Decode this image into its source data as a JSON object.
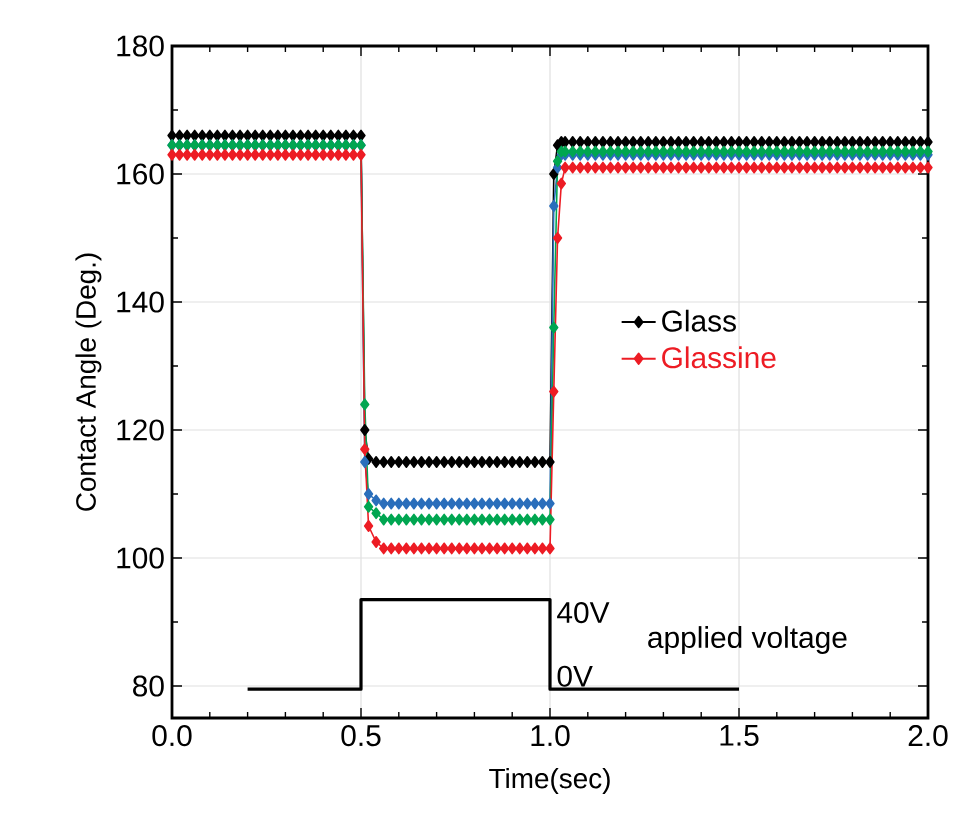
{
  "chart_data": {
    "type": "line",
    "xlabel": "Time(sec)",
    "ylabel": "Contact Angle (Deg.)",
    "xlim": [
      0,
      2
    ],
    "ylim": [
      75,
      180
    ],
    "xticks": [
      {
        "value": 0,
        "label": "0.0"
      },
      {
        "value": 0.5,
        "label": "0.5"
      },
      {
        "value": 1,
        "label": "1.0"
      },
      {
        "value": 1.5,
        "label": "1.5"
      },
      {
        "value": 2,
        "label": "2.0"
      }
    ],
    "yticks": [
      80,
      100,
      120,
      140,
      160,
      180
    ],
    "grid": true,
    "legend": "right",
    "marker": "diamond",
    "x": [
      0,
      0.02,
      0.04,
      0.06,
      0.08,
      0.1,
      0.12,
      0.14,
      0.16,
      0.18,
      0.2,
      0.22,
      0.24,
      0.26,
      0.28,
      0.3,
      0.32,
      0.34,
      0.36,
      0.38,
      0.4,
      0.42,
      0.44,
      0.46,
      0.48,
      0.5,
      0.51,
      0.52,
      0.54,
      0.56,
      0.58,
      0.6,
      0.62,
      0.64,
      0.66,
      0.68,
      0.7,
      0.72,
      0.74,
      0.76,
      0.78,
      0.8,
      0.82,
      0.84,
      0.86,
      0.88,
      0.9,
      0.92,
      0.94,
      0.96,
      0.98,
      1.0,
      1.01,
      1.02,
      1.03,
      1.04,
      1.06,
      1.08,
      1.1,
      1.12,
      1.14,
      1.16,
      1.18,
      1.2,
      1.22,
      1.24,
      1.26,
      1.28,
      1.3,
      1.32,
      1.34,
      1.36,
      1.38,
      1.4,
      1.42,
      1.44,
      1.46,
      1.48,
      1.5,
      1.52,
      1.54,
      1.56,
      1.58,
      1.6,
      1.62,
      1.64,
      1.66,
      1.68,
      1.7,
      1.72,
      1.74,
      1.76,
      1.78,
      1.8,
      1.82,
      1.84,
      1.86,
      1.88,
      1.9,
      1.92,
      1.94,
      1.96,
      1.98,
      2.0
    ],
    "series": [
      {
        "name": "Glass",
        "color": "#000000",
        "values": [
          166,
          166,
          166,
          166,
          166,
          166,
          166,
          166,
          166,
          166,
          166,
          166,
          166,
          166,
          166,
          166,
          166,
          166,
          166,
          166,
          166,
          166,
          166,
          166,
          166,
          166,
          120,
          115.5,
          115,
          115,
          115,
          115,
          115,
          115,
          115,
          115,
          115,
          115,
          115,
          115,
          115,
          115,
          115,
          115,
          115,
          115,
          115,
          115,
          115,
          115,
          115,
          115,
          160,
          164.5,
          165,
          165,
          165,
          165,
          165,
          165,
          165,
          165,
          165,
          165,
          165,
          165,
          165,
          165,
          165,
          165,
          165,
          165,
          165,
          165,
          165,
          165,
          165,
          165,
          165,
          165,
          165,
          165,
          165,
          165,
          165,
          165,
          165,
          165,
          165,
          165,
          165,
          165,
          165,
          165,
          165,
          165,
          165,
          165,
          165,
          165,
          165,
          165,
          165,
          165
        ]
      },
      {
        "color": "#2a6ebb",
        "values": [
          164.5,
          164.5,
          164.5,
          164.5,
          164.5,
          164.5,
          164.5,
          164.5,
          164.5,
          164.5,
          164.5,
          164.5,
          164.5,
          164.5,
          164.5,
          164.5,
          164.5,
          164.5,
          164.5,
          164.5,
          164.5,
          164.5,
          164.5,
          164.5,
          164.5,
          164.5,
          115,
          110,
          109,
          108.5,
          108.5,
          108.5,
          108.5,
          108.5,
          108.5,
          108.5,
          108.5,
          108.5,
          108.5,
          108.5,
          108.5,
          108.5,
          108.5,
          108.5,
          108.5,
          108.5,
          108.5,
          108.5,
          108.5,
          108.5,
          108.5,
          108.5,
          155,
          161,
          163,
          163,
          163,
          163,
          163,
          163,
          163,
          163,
          163,
          163,
          163,
          163,
          163,
          163,
          163,
          163,
          163,
          163,
          163,
          163,
          163,
          163,
          163,
          163,
          163,
          163,
          163,
          163,
          163,
          163,
          163,
          163,
          163,
          163,
          163,
          163,
          163,
          163,
          163,
          163,
          163,
          163,
          163,
          163,
          163,
          163,
          163,
          163,
          163,
          163
        ]
      },
      {
        "color": "#00a651",
        "values": [
          164.5,
          164.5,
          164.5,
          164.5,
          164.5,
          164.5,
          164.5,
          164.5,
          164.5,
          164.5,
          164.5,
          164.5,
          164.5,
          164.5,
          164.5,
          164.5,
          164.5,
          164.5,
          164.5,
          164.5,
          164.5,
          164.5,
          164.5,
          164.5,
          164.5,
          164.5,
          124,
          108,
          107,
          106,
          106,
          106,
          106,
          106,
          106,
          106,
          106,
          106,
          106,
          106,
          106,
          106,
          106,
          106,
          106,
          106,
          106,
          106,
          106,
          106,
          106,
          106,
          136,
          162,
          163.5,
          163.5,
          163.5,
          163.5,
          163.5,
          163.5,
          163.5,
          163.5,
          163.5,
          163.5,
          163.5,
          163.5,
          163.5,
          163.5,
          163.5,
          163.5,
          163.5,
          163.5,
          163.5,
          163.5,
          163.5,
          163.5,
          163.5,
          163.5,
          163.5,
          163.5,
          163.5,
          163.5,
          163.5,
          163.5,
          163.5,
          163.5,
          163.5,
          163.5,
          163.5,
          163.5,
          163.5,
          163.5,
          163.5,
          163.5,
          163.5,
          163.5,
          163.5,
          163.5,
          163.5,
          163.5,
          163.5,
          163.5,
          163.5,
          163.5
        ]
      },
      {
        "name": "Glassine",
        "color": "#ed1c24",
        "values": [
          163,
          163,
          163,
          163,
          163,
          163,
          163,
          163,
          163,
          163,
          163,
          163,
          163,
          163,
          163,
          163,
          163,
          163,
          163,
          163,
          163,
          163,
          163,
          163,
          163,
          163,
          117,
          105,
          102.5,
          101.5,
          101.5,
          101.5,
          101.5,
          101.5,
          101.5,
          101.5,
          101.5,
          101.5,
          101.5,
          101.5,
          101.5,
          101.5,
          101.5,
          101.5,
          101.5,
          101.5,
          101.5,
          101.5,
          101.5,
          101.5,
          101.5,
          101.5,
          126,
          150,
          158.5,
          161,
          161,
          161,
          161,
          161,
          161,
          161,
          161,
          161,
          161,
          161,
          161,
          161,
          161,
          161,
          161,
          161,
          161,
          161,
          161,
          161,
          161,
          161,
          161,
          161,
          161,
          161,
          161,
          161,
          161,
          161,
          161,
          161,
          161,
          161,
          161,
          161,
          161,
          161,
          161,
          161,
          161,
          161,
          161,
          161,
          161,
          161,
          161,
          161
        ]
      },
      {
        "color": "#000000",
        "marker": "none",
        "x": [
          0.2,
          0.5,
          0.5,
          1.0,
          1.0,
          1.5
        ],
        "values": [
          79.5,
          79.5,
          93.5,
          93.5,
          79.5,
          79.5
        ]
      }
    ],
    "annotations": [
      {
        "text": "40V",
        "x": 1.0,
        "y": 93.5
      },
      {
        "text": "0V",
        "x": 1.0,
        "y": 79.5
      },
      "applied voltage"
    ]
  }
}
